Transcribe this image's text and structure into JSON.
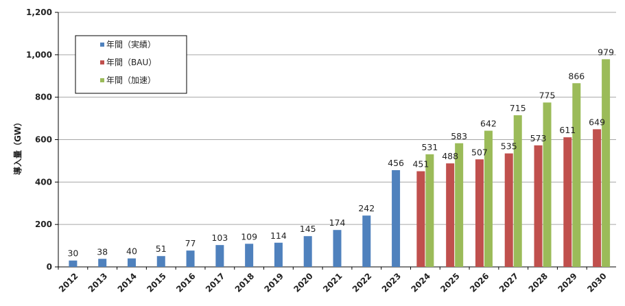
{
  "chart_data": {
    "type": "bar",
    "ylabel": "導入量（GW）",
    "ylim": [
      0,
      1200
    ],
    "yticks": [
      "0",
      "200",
      "400",
      "600",
      "800",
      "1,000",
      "1,200"
    ],
    "grid": true,
    "legend_position": "top-left",
    "categories": [
      "2012",
      "2013",
      "2014",
      "2015",
      "2016",
      "2017",
      "2018",
      "2019",
      "2020",
      "2021",
      "2022",
      "2023",
      "2024",
      "2025",
      "2026",
      "2027",
      "2028",
      "2029",
      "2030"
    ],
    "series": [
      {
        "name": "年間（実績）",
        "color": "#4F81BD",
        "values": [
          30,
          38,
          40,
          51,
          77,
          103,
          109,
          114,
          145,
          174,
          242,
          456,
          null,
          null,
          null,
          null,
          null,
          null,
          null
        ]
      },
      {
        "name": "年間（BAU）",
        "color": "#C0504D",
        "values": [
          null,
          null,
          null,
          null,
          null,
          null,
          null,
          null,
          null,
          null,
          null,
          null,
          451,
          488,
          507,
          535,
          573,
          611,
          649
        ]
      },
      {
        "name": "年間（加速）",
        "color": "#9BBB59",
        "values": [
          null,
          null,
          null,
          null,
          null,
          null,
          null,
          null,
          null,
          null,
          null,
          null,
          531,
          583,
          642,
          715,
          775,
          866,
          979
        ]
      }
    ]
  }
}
